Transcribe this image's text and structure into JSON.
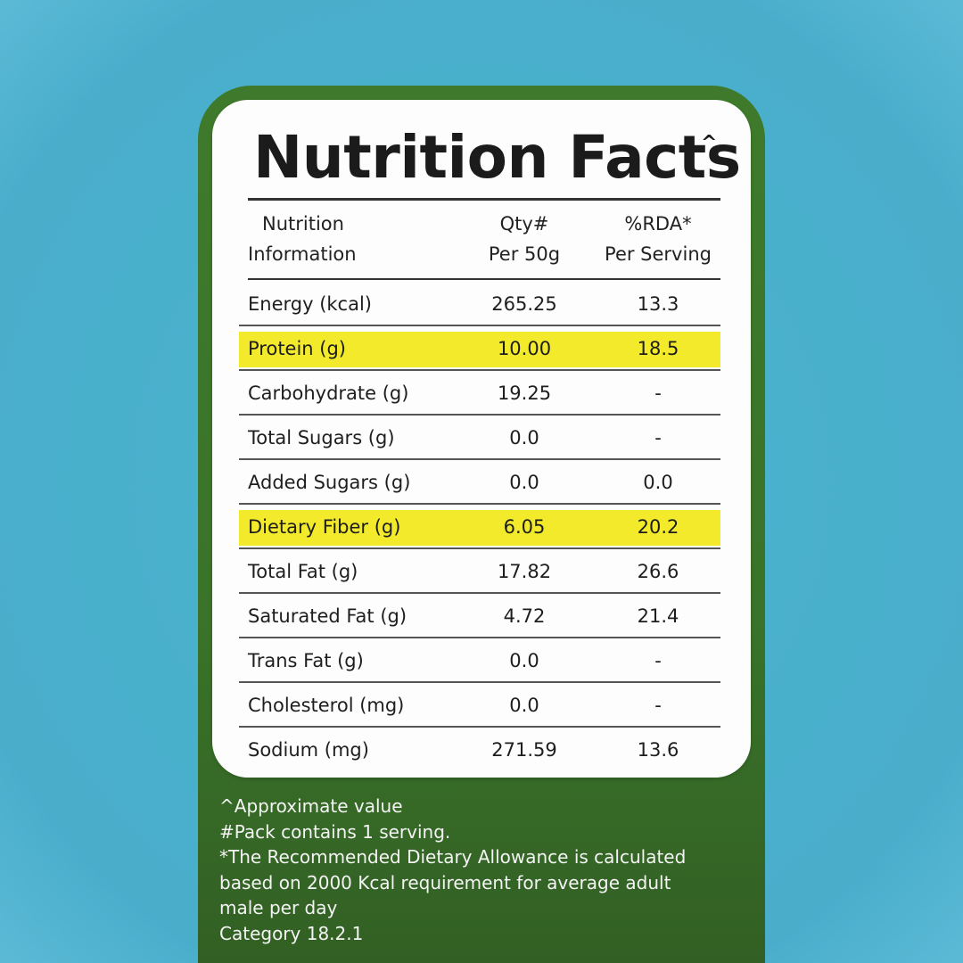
{
  "panel": {
    "title": "Nutrition Facts",
    "title_mark": "^",
    "header": {
      "col1_line1": "Nutrition",
      "col1_line2": "Information",
      "col2_line1": "Qty#",
      "col2_line2": "Per 50g",
      "col3_line1": "%RDA*",
      "col3_line2": "Per Serving"
    },
    "rows": [
      {
        "name": "Energy (kcal)",
        "qty": "265.25",
        "rda": "13.3",
        "highlight": false
      },
      {
        "name": "Protein (g)",
        "qty": "10.00",
        "rda": "18.5",
        "highlight": true
      },
      {
        "name": "Carbohydrate (g)",
        "qty": "19.25",
        "rda": "-",
        "highlight": false
      },
      {
        "name": "Total Sugars (g)",
        "qty": "0.0",
        "rda": "-",
        "highlight": false
      },
      {
        "name": "Added Sugars (g)",
        "qty": "0.0",
        "rda": "0.0",
        "highlight": false
      },
      {
        "name": "Dietary Fiber (g)",
        "qty": "6.05",
        "rda": "20.2",
        "highlight": true
      },
      {
        "name": "Total Fat (g)",
        "qty": "17.82",
        "rda": "26.6",
        "highlight": false
      },
      {
        "name": "Saturated Fat (g)",
        "qty": "4.72",
        "rda": "21.4",
        "highlight": false
      },
      {
        "name": "Trans Fat (g)",
        "qty": "0.0",
        "rda": "-",
        "highlight": false
      },
      {
        "name": "Cholesterol (mg)",
        "qty": "0.0",
        "rda": "-",
        "highlight": false
      },
      {
        "name": "Sodium (mg)",
        "qty": "271.59",
        "rda": "13.6",
        "highlight": false
      }
    ]
  },
  "footnotes": {
    "line1": "^Approximate value",
    "line2": "#Pack contains 1 serving.",
    "line3": "*The Recommended Dietary Allowance is calculated",
    "line4": "based on 2000 Kcal requirement for average adult",
    "line5": "male per day",
    "line6": "Category 18.2.1"
  },
  "colors": {
    "background": "#4aaecb",
    "pack_green": "#3a7329",
    "highlight_yellow": "#f2ea2a",
    "card": "#fdfdfd"
  }
}
